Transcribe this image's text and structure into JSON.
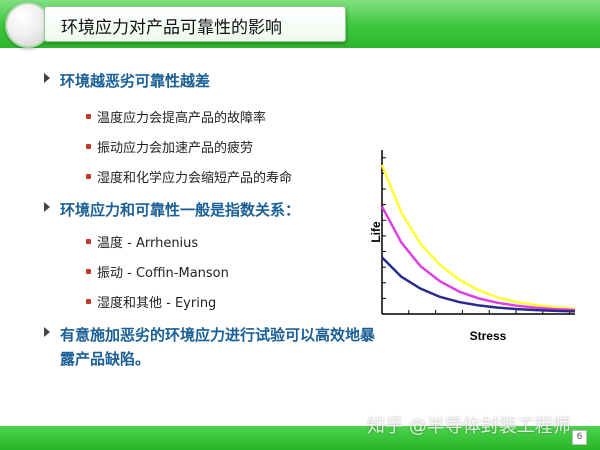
{
  "header": {
    "title": "环境应力对产品可靠性的影响"
  },
  "bullets": [
    {
      "text": "环境越恶劣可靠性越差",
      "children": [
        "温度应力会提高产品的故障率",
        "振动应力会加速产品的疲劳",
        "湿度和化学应力会缩短产品的寿命"
      ]
    },
    {
      "text": "环境应力和可靠性一般是指数关系：",
      "children": [
        "温度 -  Arrhenius",
        "振动 -  Coffin-Manson",
        "湿度和其他 -  Eyring"
      ]
    },
    {
      "text_line1": "有意施加恶劣的环境应力进行试验可以高效地暴",
      "text_line2": "露产品缺陷。"
    }
  ],
  "chart_data": {
    "type": "line",
    "xlabel": "Stress",
    "ylabel": "Life",
    "x": [
      0,
      1,
      2,
      3,
      4,
      5,
      6,
      7,
      8,
      9,
      10
    ],
    "series": [
      {
        "color": "#ffff33",
        "values": [
          10.0,
          6.8,
          4.7,
          3.3,
          2.3,
          1.6,
          1.1,
          0.8,
          0.6,
          0.45,
          0.35
        ]
      },
      {
        "color": "#e040e0",
        "values": [
          7.2,
          4.8,
          3.2,
          2.2,
          1.5,
          1.05,
          0.75,
          0.55,
          0.42,
          0.33,
          0.27
        ]
      },
      {
        "color": "#2b2b8f",
        "values": [
          3.8,
          2.5,
          1.7,
          1.15,
          0.8,
          0.58,
          0.43,
          0.33,
          0.26,
          0.21,
          0.18
        ]
      }
    ],
    "xlim": [
      0,
      10
    ],
    "ylim": [
      0,
      11
    ],
    "grid": false
  },
  "footer": {
    "watermark": "知乎 @半导体封装工程师...",
    "page_number": "6"
  }
}
